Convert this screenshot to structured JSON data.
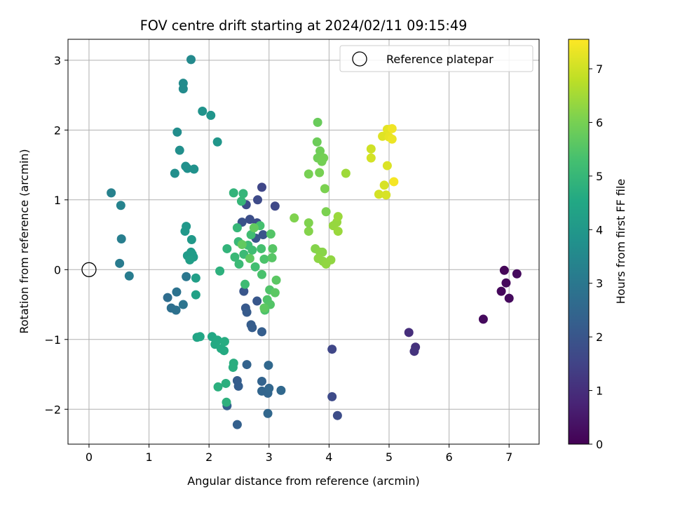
{
  "chart_data": {
    "type": "scatter",
    "title": "FOV centre drift starting at 2024/02/11 09:15:49",
    "xlabel": "Angular distance from reference (arcmin)",
    "ylabel": "Rotation from reference (arcmin)",
    "xlim": [
      -0.35,
      7.5
    ],
    "ylim": [
      -2.5,
      3.3
    ],
    "xticks": [
      "0",
      "1",
      "2",
      "3",
      "4",
      "5",
      "6",
      "7"
    ],
    "yticks": [
      "−2",
      "−1",
      "0",
      "1",
      "2",
      "3"
    ],
    "grid": true,
    "legend": {
      "position": "top-right",
      "entries": [
        "Reference platepar"
      ]
    },
    "reference_point": {
      "x": 0,
      "y": 0
    },
    "colorbar": {
      "label": "Hours from first FF file",
      "colormap": "viridis",
      "range": [
        0,
        7.55
      ],
      "ticks": [
        "0",
        "1",
        "2",
        "3",
        "4",
        "5",
        "6",
        "7"
      ]
    },
    "points": [
      {
        "x": 6.57,
        "y": -0.71,
        "c": 0.2
      },
      {
        "x": 6.92,
        "y": -0.01,
        "c": 0.1
      },
      {
        "x": 6.87,
        "y": -0.31,
        "c": 0.15
      },
      {
        "x": 6.95,
        "y": -0.19,
        "c": 0.15
      },
      {
        "x": 7.0,
        "y": -0.41,
        "c": 0.2
      },
      {
        "x": 7.13,
        "y": -0.06,
        "c": 0.2
      },
      {
        "x": 5.33,
        "y": -0.9,
        "c": 1.0
      },
      {
        "x": 5.44,
        "y": -1.11,
        "c": 1.05
      },
      {
        "x": 5.42,
        "y": -1.17,
        "c": 1.1
      },
      {
        "x": 4.05,
        "y": -1.14,
        "c": 1.6
      },
      {
        "x": 4.05,
        "y": -1.82,
        "c": 1.7
      },
      {
        "x": 4.14,
        "y": -2.09,
        "c": 1.75
      },
      {
        "x": 2.88,
        "y": 1.18,
        "c": 1.6
      },
      {
        "x": 3.1,
        "y": 0.91,
        "c": 1.65
      },
      {
        "x": 2.81,
        "y": 1.0,
        "c": 1.7
      },
      {
        "x": 2.62,
        "y": 0.93,
        "c": 1.75
      },
      {
        "x": 2.68,
        "y": 0.72,
        "c": 1.8
      },
      {
        "x": 2.8,
        "y": 0.67,
        "c": 1.8
      },
      {
        "x": 2.55,
        "y": 0.68,
        "c": 1.9
      },
      {
        "x": 2.9,
        "y": 0.5,
        "c": 1.95
      },
      {
        "x": 2.78,
        "y": 0.45,
        "c": 2.0
      },
      {
        "x": 2.58,
        "y": -0.31,
        "c": 2.0
      },
      {
        "x": 2.8,
        "y": -0.45,
        "c": 2.05
      },
      {
        "x": 2.61,
        "y": -0.55,
        "c": 2.1
      },
      {
        "x": 2.63,
        "y": -0.61,
        "c": 2.15
      },
      {
        "x": 2.7,
        "y": -0.79,
        "c": 2.2
      },
      {
        "x": 2.72,
        "y": -0.83,
        "c": 2.2
      },
      {
        "x": 2.88,
        "y": -0.89,
        "c": 2.25
      },
      {
        "x": 2.47,
        "y": -1.59,
        "c": 2.2
      },
      {
        "x": 2.49,
        "y": -1.67,
        "c": 2.25
      },
      {
        "x": 2.3,
        "y": -1.95,
        "c": 2.3
      },
      {
        "x": 2.47,
        "y": -2.22,
        "c": 2.3
      },
      {
        "x": 2.63,
        "y": -1.36,
        "c": 2.4
      },
      {
        "x": 2.88,
        "y": -1.6,
        "c": 2.4
      },
      {
        "x": 2.88,
        "y": -1.74,
        "c": 2.45
      },
      {
        "x": 2.98,
        "y": -1.77,
        "c": 2.45
      },
      {
        "x": 3.0,
        "y": -1.7,
        "c": 2.5
      },
      {
        "x": 2.98,
        "y": -2.06,
        "c": 2.5
      },
      {
        "x": 3.2,
        "y": -1.73,
        "c": 2.55
      },
      {
        "x": 2.99,
        "y": -1.37,
        "c": 2.55
      },
      {
        "x": 1.31,
        "y": -0.4,
        "c": 2.7
      },
      {
        "x": 1.37,
        "y": -0.55,
        "c": 2.75
      },
      {
        "x": 1.45,
        "y": -0.58,
        "c": 2.8
      },
      {
        "x": 1.46,
        "y": -0.32,
        "c": 2.85
      },
      {
        "x": 1.57,
        "y": -0.5,
        "c": 2.9
      },
      {
        "x": 1.62,
        "y": -0.1,
        "c": 3.0
      },
      {
        "x": 0.51,
        "y": 0.09,
        "c": 3.1
      },
      {
        "x": 0.67,
        "y": -0.09,
        "c": 3.15
      },
      {
        "x": 0.54,
        "y": 0.44,
        "c": 3.2
      },
      {
        "x": 0.37,
        "y": 1.1,
        "c": 3.3
      },
      {
        "x": 0.53,
        "y": 0.92,
        "c": 3.35
      },
      {
        "x": 1.7,
        "y": 3.01,
        "c": 3.55
      },
      {
        "x": 1.57,
        "y": 2.67,
        "c": 3.6
      },
      {
        "x": 1.57,
        "y": 2.59,
        "c": 3.6
      },
      {
        "x": 1.47,
        "y": 1.97,
        "c": 3.65
      },
      {
        "x": 1.51,
        "y": 1.71,
        "c": 3.7
      },
      {
        "x": 1.43,
        "y": 1.38,
        "c": 3.7
      },
      {
        "x": 1.61,
        "y": 1.48,
        "c": 3.75
      },
      {
        "x": 1.64,
        "y": 1.45,
        "c": 3.75
      },
      {
        "x": 1.75,
        "y": 1.44,
        "c": 3.8
      },
      {
        "x": 1.89,
        "y": 2.27,
        "c": 3.85
      },
      {
        "x": 2.03,
        "y": 2.21,
        "c": 3.9
      },
      {
        "x": 2.14,
        "y": 1.83,
        "c": 3.95
      },
      {
        "x": 1.62,
        "y": 0.62,
        "c": 4.0
      },
      {
        "x": 1.6,
        "y": 0.55,
        "c": 4.0
      },
      {
        "x": 1.71,
        "y": 0.43,
        "c": 4.05
      },
      {
        "x": 1.64,
        "y": 0.2,
        "c": 4.1
      },
      {
        "x": 1.7,
        "y": 0.25,
        "c": 4.1
      },
      {
        "x": 1.72,
        "y": 0.22,
        "c": 4.15
      },
      {
        "x": 1.74,
        "y": 0.18,
        "c": 4.15
      },
      {
        "x": 1.68,
        "y": 0.14,
        "c": 4.2
      },
      {
        "x": 1.78,
        "y": -0.12,
        "c": 4.2
      },
      {
        "x": 1.78,
        "y": -0.36,
        "c": 4.3
      },
      {
        "x": 1.8,
        "y": -0.97,
        "c": 4.4
      },
      {
        "x": 1.85,
        "y": -0.96,
        "c": 4.45
      },
      {
        "x": 2.05,
        "y": -0.96,
        "c": 4.5
      },
      {
        "x": 2.14,
        "y": -1.01,
        "c": 4.55
      },
      {
        "x": 2.1,
        "y": -1.07,
        "c": 4.55
      },
      {
        "x": 2.2,
        "y": -1.13,
        "c": 4.6
      },
      {
        "x": 2.25,
        "y": -1.16,
        "c": 4.6
      },
      {
        "x": 2.26,
        "y": -1.03,
        "c": 4.65
      },
      {
        "x": 2.41,
        "y": -1.34,
        "c": 4.7
      },
      {
        "x": 2.4,
        "y": -1.4,
        "c": 4.7
      },
      {
        "x": 2.28,
        "y": -1.63,
        "c": 4.75
      },
      {
        "x": 2.15,
        "y": -1.68,
        "c": 4.75
      },
      {
        "x": 2.29,
        "y": -1.9,
        "c": 4.8
      },
      {
        "x": 2.18,
        "y": -0.02,
        "c": 4.8
      },
      {
        "x": 2.3,
        "y": 0.3,
        "c": 4.9
      },
      {
        "x": 2.41,
        "y": 1.1,
        "c": 4.9
      },
      {
        "x": 2.57,
        "y": 1.09,
        "c": 4.95
      },
      {
        "x": 2.54,
        "y": 0.98,
        "c": 5.0
      },
      {
        "x": 2.47,
        "y": 0.6,
        "c": 5.0
      },
      {
        "x": 2.49,
        "y": 0.4,
        "c": 5.05
      },
      {
        "x": 2.43,
        "y": 0.18,
        "c": 5.05
      },
      {
        "x": 2.5,
        "y": 0.08,
        "c": 5.1
      },
      {
        "x": 2.58,
        "y": 0.22,
        "c": 5.1
      },
      {
        "x": 2.6,
        "y": -0.21,
        "c": 5.15
      },
      {
        "x": 2.65,
        "y": 0.35,
        "c": 5.15
      },
      {
        "x": 2.7,
        "y": 0.5,
        "c": 5.2
      },
      {
        "x": 2.72,
        "y": 0.28,
        "c": 5.2
      },
      {
        "x": 2.77,
        "y": 0.04,
        "c": 5.25
      },
      {
        "x": 2.85,
        "y": 0.63,
        "c": 5.3
      },
      {
        "x": 2.87,
        "y": 0.3,
        "c": 5.3
      },
      {
        "x": 2.88,
        "y": -0.07,
        "c": 5.35
      },
      {
        "x": 2.92,
        "y": 0.15,
        "c": 5.4
      },
      {
        "x": 2.93,
        "y": -0.58,
        "c": 5.4
      },
      {
        "x": 2.97,
        "y": -0.43,
        "c": 5.45
      },
      {
        "x": 3.01,
        "y": -0.29,
        "c": 5.45
      },
      {
        "x": 3.02,
        "y": -0.5,
        "c": 5.5
      },
      {
        "x": 3.03,
        "y": 0.51,
        "c": 5.5
      },
      {
        "x": 3.05,
        "y": 0.17,
        "c": 5.55
      },
      {
        "x": 3.06,
        "y": 0.3,
        "c": 5.55
      },
      {
        "x": 3.1,
        "y": -0.33,
        "c": 5.6
      },
      {
        "x": 3.12,
        "y": -0.15,
        "c": 5.6
      },
      {
        "x": 2.92,
        "y": -0.55,
        "c": 5.65
      },
      {
        "x": 2.68,
        "y": 0.16,
        "c": 5.65
      },
      {
        "x": 2.75,
        "y": 0.6,
        "c": 5.7
      },
      {
        "x": 2.55,
        "y": 0.36,
        "c": 5.7
      },
      {
        "x": 3.81,
        "y": 2.11,
        "c": 5.8
      },
      {
        "x": 3.8,
        "y": 1.83,
        "c": 5.85
      },
      {
        "x": 3.85,
        "y": 1.7,
        "c": 5.9
      },
      {
        "x": 3.81,
        "y": 1.6,
        "c": 5.9
      },
      {
        "x": 3.88,
        "y": 1.55,
        "c": 5.95
      },
      {
        "x": 3.91,
        "y": 1.6,
        "c": 5.95
      },
      {
        "x": 3.66,
        "y": 1.37,
        "c": 6.0
      },
      {
        "x": 3.84,
        "y": 1.39,
        "c": 6.0
      },
      {
        "x": 3.93,
        "y": 1.16,
        "c": 6.05
      },
      {
        "x": 3.95,
        "y": 0.83,
        "c": 6.05
      },
      {
        "x": 3.42,
        "y": 0.74,
        "c": 6.1
      },
      {
        "x": 3.66,
        "y": 0.67,
        "c": 6.1
      },
      {
        "x": 3.66,
        "y": 0.55,
        "c": 6.15
      },
      {
        "x": 3.77,
        "y": 0.3,
        "c": 6.15
      },
      {
        "x": 3.85,
        "y": 0.25,
        "c": 6.2
      },
      {
        "x": 3.89,
        "y": 0.25,
        "c": 6.2
      },
      {
        "x": 3.82,
        "y": 0.16,
        "c": 6.25
      },
      {
        "x": 3.9,
        "y": 0.12,
        "c": 6.25
      },
      {
        "x": 3.95,
        "y": 0.08,
        "c": 6.3
      },
      {
        "x": 4.03,
        "y": 0.14,
        "c": 6.3
      },
      {
        "x": 4.07,
        "y": 0.63,
        "c": 6.35
      },
      {
        "x": 4.13,
        "y": 0.68,
        "c": 6.35
      },
      {
        "x": 4.15,
        "y": 0.76,
        "c": 6.4
      },
      {
        "x": 4.15,
        "y": 0.55,
        "c": 6.4
      },
      {
        "x": 4.28,
        "y": 1.38,
        "c": 6.45
      },
      {
        "x": 4.7,
        "y": 1.73,
        "c": 7.0
      },
      {
        "x": 4.7,
        "y": 1.6,
        "c": 7.05
      },
      {
        "x": 4.83,
        "y": 1.08,
        "c": 7.05
      },
      {
        "x": 4.92,
        "y": 1.21,
        "c": 7.1
      },
      {
        "x": 4.95,
        "y": 1.07,
        "c": 7.1
      },
      {
        "x": 4.97,
        "y": 1.49,
        "c": 7.15
      },
      {
        "x": 4.89,
        "y": 1.91,
        "c": 7.2
      },
      {
        "x": 4.97,
        "y": 2.01,
        "c": 7.25
      },
      {
        "x": 5.0,
        "y": 1.9,
        "c": 7.3
      },
      {
        "x": 5.05,
        "y": 1.87,
        "c": 7.35
      },
      {
        "x": 5.05,
        "y": 2.02,
        "c": 7.4
      },
      {
        "x": 5.08,
        "y": 1.26,
        "c": 7.45
      }
    ]
  }
}
